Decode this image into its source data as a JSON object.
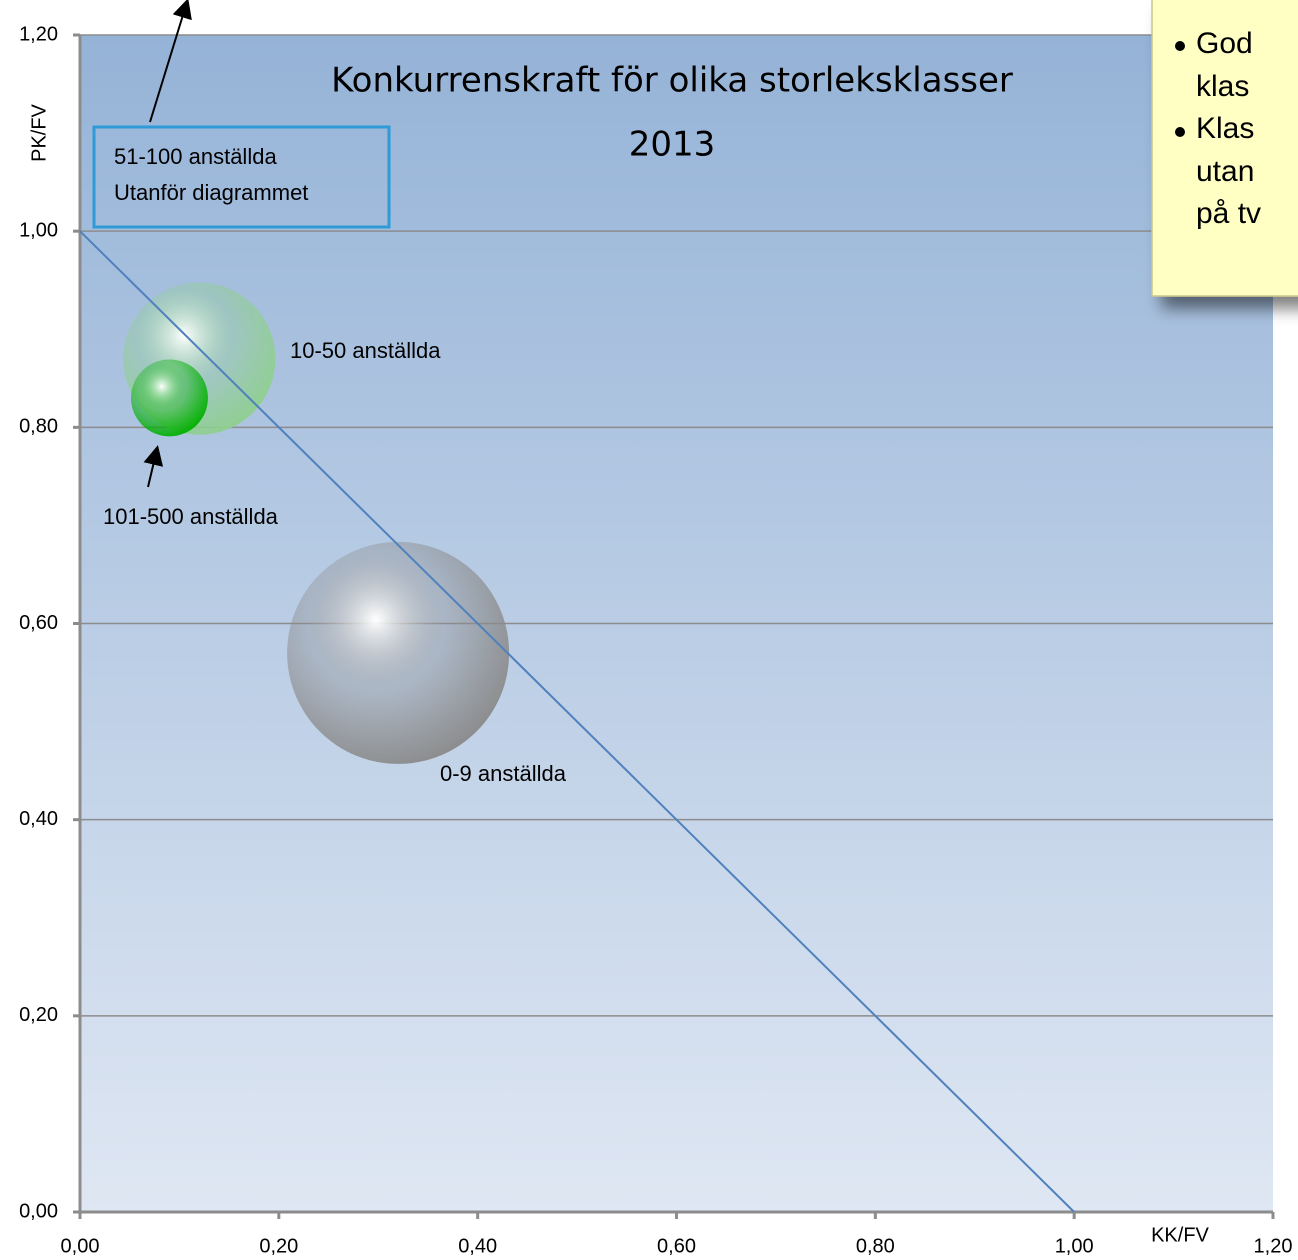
{
  "chart_data": {
    "type": "bubble",
    "title": [
      "Konkurrenskraft för olika storleksklasser",
      "2013"
    ],
    "x_label": "KK/FV",
    "y_label": "PK/FV",
    "xlim": [
      0,
      1.2
    ],
    "ylim": [
      0,
      1.2
    ],
    "xticks": [
      {
        "value": 0,
        "label": "0,00"
      },
      {
        "value": 0.2,
        "label": "0,20"
      },
      {
        "value": 0.4,
        "label": "0,40"
      },
      {
        "value": 0.6,
        "label": "0,60"
      },
      {
        "value": 0.8,
        "label": "0,80"
      },
      {
        "value": 1,
        "label": "1,00"
      },
      {
        "value": 1.2,
        "label": "1,20"
      }
    ],
    "yticks": [
      {
        "value": 0,
        "label": "0,00"
      },
      {
        "value": 0.2,
        "label": "0,20"
      },
      {
        "value": 0.4,
        "label": "0,40"
      },
      {
        "value": 0.6,
        "label": "0,60"
      },
      {
        "value": 0.8,
        "label": "0,80"
      },
      {
        "value": 1,
        "label": "1,00"
      },
      {
        "value": 1.2,
        "label": "1,20"
      }
    ],
    "grid": true,
    "series": [
      {
        "name": "0-9 anställda",
        "color": "#8a8a8a",
        "x": [
          0.32
        ],
        "values": [
          0.57
        ],
        "sizes": [
          100
        ]
      },
      {
        "name": "10-50 anställda",
        "color": "#8fcf8f",
        "x": [
          0.12
        ],
        "values": [
          0.87
        ],
        "sizes": [
          47
        ]
      },
      {
        "name": "101-500 anställda",
        "color": "#00b000",
        "x": [
          0.09
        ],
        "values": [
          0.83
        ],
        "sizes": [
          12
        ]
      }
    ],
    "reference_line": {
      "x": [
        0,
        1
      ],
      "y": [
        1,
        0
      ],
      "color": "#4f81bd"
    },
    "annotations": [
      "51-100 anställda",
      "Utanför diagrammet"
    ],
    "callout": [
      [
        "God",
        "klas"
      ],
      [
        "Klas",
        "utan",
        "på tv"
      ]
    ]
  }
}
